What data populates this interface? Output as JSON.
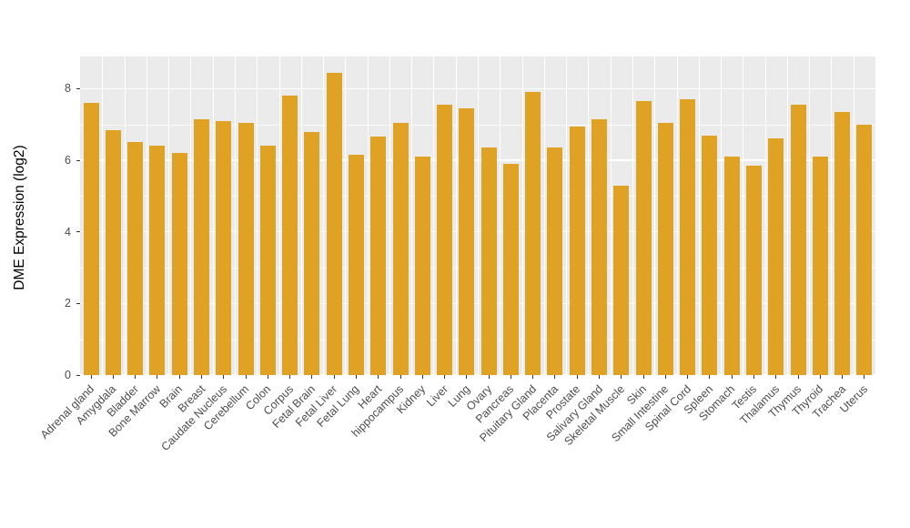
{
  "chart_data": {
    "type": "bar",
    "title": "",
    "xlabel": "",
    "ylabel": "DME Expression (log2)",
    "ylim": [
      0,
      8.9
    ],
    "yticks_major": [
      0,
      2,
      4,
      6,
      8
    ],
    "yticks_minor": [
      1,
      3,
      5,
      7
    ],
    "grid": true,
    "legend_position": "none",
    "bar_color": "#E0A225",
    "panel_bg": "#EBEBEB",
    "grid_color": "#FFFFFF",
    "categories": [
      "Adrenal gland",
      "Amygdala",
      "Bladder",
      "Bone Marrow",
      "Brain",
      "Breast",
      "Caudate Nucleus",
      "Cerebellum",
      "Colon",
      "Corpus",
      "Fetal Brain",
      "Fetal Liver",
      "Fetal Lung",
      "Heart",
      "hippocampus",
      "Kidney",
      "Liver",
      "Lung",
      "Ovary",
      "Pancreas",
      "Pituitary Gland",
      "Placenta",
      "Prostate",
      "Salivary Gland",
      "Skeletal Muscle",
      "Skin",
      "Small Intestine",
      "Spinal Cord",
      "Spleen",
      "Stomach",
      "Testis",
      "Thalamus",
      "Thymus",
      "Thyroid",
      "Trachea",
      "Uterus"
    ],
    "values": [
      7.6,
      6.85,
      6.5,
      6.4,
      6.2,
      7.15,
      7.1,
      7.05,
      6.4,
      7.8,
      6.8,
      8.45,
      6.15,
      6.65,
      7.05,
      6.1,
      7.55,
      7.45,
      6.35,
      5.9,
      7.9,
      6.35,
      6.95,
      7.15,
      5.3,
      7.65,
      7.05,
      7.7,
      6.7,
      6.1,
      5.85,
      6.6,
      7.55,
      6.1,
      7.35,
      7.0
    ]
  }
}
